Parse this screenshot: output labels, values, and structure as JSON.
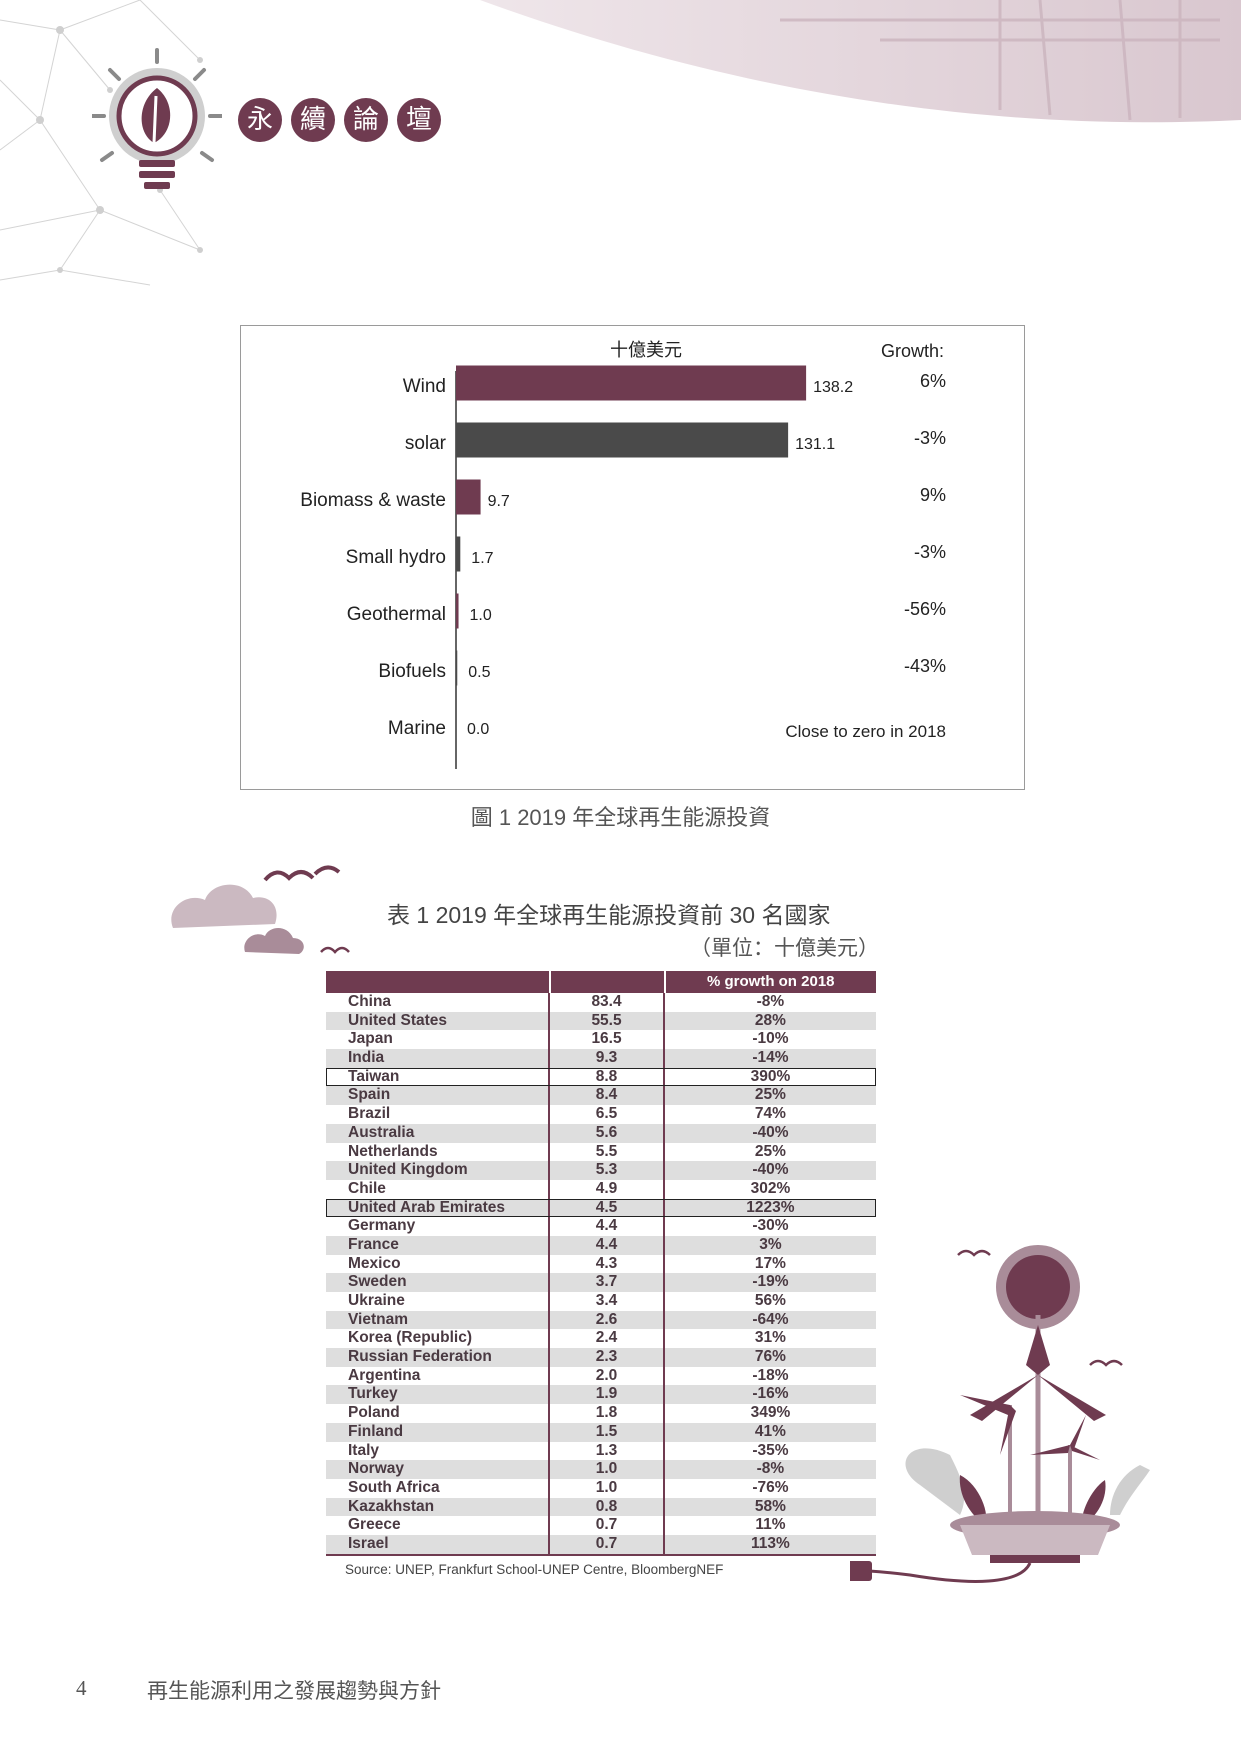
{
  "header": {
    "badges": [
      "永",
      "續",
      "論",
      "壇"
    ]
  },
  "colors": {
    "primary": "#6f3b50",
    "dark": "#4a4a4a",
    "stripe": "#dedede"
  },
  "figure": {
    "caption": "圖 1  2019 年全球再生能源投資",
    "chart_data": {
      "type": "bar",
      "orientation": "horizontal",
      "unit_label": "十億美元",
      "growth_header": "Growth:",
      "categories": [
        "Wind",
        "solar",
        "Biomass & waste",
        "Small hydro",
        "Geothermal",
        "Biofuels",
        "Marine"
      ],
      "values": [
        138.2,
        131.1,
        9.7,
        1.7,
        1.0,
        0.5,
        0.0
      ],
      "value_labels": [
        "138.2",
        "131.1",
        "9.7",
        "1.7",
        "1.0",
        "0.5",
        "0.0"
      ],
      "growth": [
        "6%",
        "-3%",
        "9%",
        "-3%",
        "-56%",
        "-43%",
        "Close to zero in 2018"
      ],
      "bar_colors": [
        "#6f3b50",
        "#4a4a4a",
        "#6f3b50",
        "#4a4a4a",
        "#6f3b50",
        "#4a4a4a",
        "#6f3b50"
      ],
      "xlim": [
        0,
        150
      ]
    }
  },
  "table": {
    "title": "表 1  2019 年全球再生能源投資前 30 名國家",
    "unit": "（單位：十億美元）",
    "headers": [
      "",
      "",
      "% growth on 2018"
    ],
    "rows": [
      [
        "China",
        "83.4",
        "-8%"
      ],
      [
        "United States",
        "55.5",
        "28%"
      ],
      [
        "Japan",
        "16.5",
        "-10%"
      ],
      [
        "India",
        "9.3",
        "-14%"
      ],
      [
        "Taiwan",
        "8.8",
        "390%"
      ],
      [
        "Spain",
        "8.4",
        "25%"
      ],
      [
        "Brazil",
        "6.5",
        "74%"
      ],
      [
        "Australia",
        "5.6",
        "-40%"
      ],
      [
        "Netherlands",
        "5.5",
        "25%"
      ],
      [
        "United Kingdom",
        "5.3",
        "-40%"
      ],
      [
        "Chile",
        "4.9",
        "302%"
      ],
      [
        "United Arab Emirates",
        "4.5",
        "1223%"
      ],
      [
        "Germany",
        "4.4",
        "-30%"
      ],
      [
        "France",
        "4.4",
        "3%"
      ],
      [
        "Mexico",
        "4.3",
        "17%"
      ],
      [
        "Sweden",
        "3.7",
        "-19%"
      ],
      [
        "Ukraine",
        "3.4",
        "56%"
      ],
      [
        "Vietnam",
        "2.6",
        "-64%"
      ],
      [
        "Korea (Republic)",
        "2.4",
        "31%"
      ],
      [
        "Russian Federation",
        "2.3",
        "76%"
      ],
      [
        "Argentina",
        "2.0",
        "-18%"
      ],
      [
        "Turkey",
        "1.9",
        "-16%"
      ],
      [
        "Poland",
        "1.8",
        "349%"
      ],
      [
        "Finland",
        "1.5",
        "41%"
      ],
      [
        "Italy",
        "1.3",
        "-35%"
      ],
      [
        "Norway",
        "1.0",
        "-8%"
      ],
      [
        "South Africa",
        "1.0",
        "-76%"
      ],
      [
        "Kazakhstan",
        "0.8",
        "58%"
      ],
      [
        "Greece",
        "0.7",
        "11%"
      ],
      [
        "Israel",
        "0.7",
        "113%"
      ]
    ],
    "highlighted": [
      "Taiwan",
      "United Arab Emirates"
    ],
    "source": "Source: UNEP, Frankfurt School-UNEP Centre, BloombergNEF"
  },
  "footer": {
    "page_number": "4",
    "title": "再生能源利用之發展趨勢與方針"
  }
}
